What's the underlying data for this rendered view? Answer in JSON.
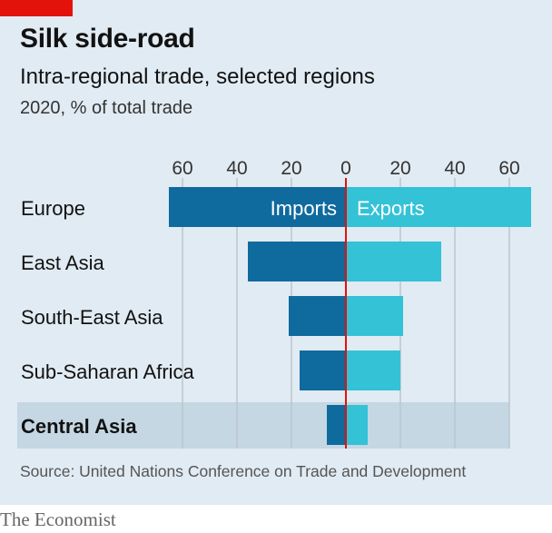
{
  "header": {
    "title": "Silk side-road",
    "subtitle": "Intra-regional trade, selected regions",
    "units": "2020, % of total trade"
  },
  "source": "Source: United Nations Conference on Trade and Development",
  "brand": "The Economist",
  "colors": {
    "panel": "#e1ebf3",
    "brand_red": "#e3120b",
    "imports": "#0f6a9e",
    "exports": "#33c2d6",
    "zero_line": "#e3120b",
    "grid": "#bcc6ce",
    "highlight_band": "#c4d7e3"
  },
  "chart_data": {
    "type": "bar",
    "orientation": "horizontal-diverging",
    "title": "Silk side-road",
    "subtitle": "Intra-regional trade, selected regions",
    "xlabel": "2020, % of total trade",
    "ylabel": "",
    "tick_values": [
      -60,
      -40,
      -20,
      0,
      20,
      40,
      60
    ],
    "tick_labels": [
      "60",
      "40",
      "20",
      "0",
      "20",
      "40",
      "60"
    ],
    "xlim": [
      -65,
      68
    ],
    "grid": true,
    "categories": [
      "Europe",
      "East Asia",
      "South-East Asia",
      "Sub-Saharan Africa",
      "Central Asia"
    ],
    "highlight": "Central Asia",
    "series": [
      {
        "name": "Imports",
        "side": "left",
        "values": [
          65,
          36,
          21,
          17,
          7
        ]
      },
      {
        "name": "Exports",
        "side": "right",
        "values": [
          68,
          35,
          21,
          20,
          8
        ]
      }
    ]
  }
}
